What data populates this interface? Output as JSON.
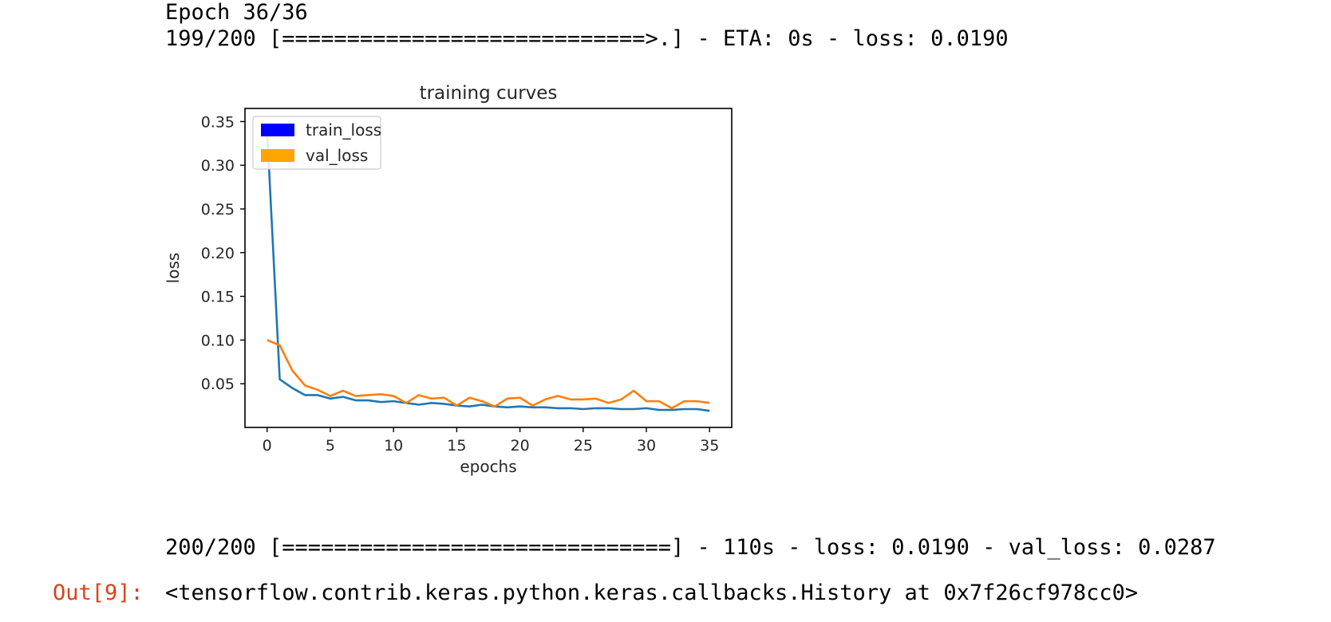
{
  "console": {
    "epoch_line": "Epoch 36/36",
    "progress_line": "199/200 [============================>.] - ETA: 0s - loss: 0.0190",
    "final_line": "200/200 [==============================] - 110s - loss: 0.0190 - val_loss: 0.0287",
    "out_prompt": "Out[9]:",
    "out_value": "<tensorflow.contrib.keras.python.keras.callbacks.History at 0x7f26cf978cc0>"
  },
  "chart_data": {
    "type": "line",
    "title": "training curves",
    "xlabel": "epochs",
    "ylabel": "loss",
    "xlim": [
      -1.75,
      36.75
    ],
    "ylim": [
      0.0,
      0.365
    ],
    "xticks": [
      0,
      5,
      10,
      15,
      20,
      25,
      30,
      35
    ],
    "yticks": [
      0.05,
      0.1,
      0.15,
      0.2,
      0.25,
      0.3,
      0.35
    ],
    "ytick_labels": [
      "0.05",
      "0.10",
      "0.15",
      "0.20",
      "0.25",
      "0.30",
      "0.35"
    ],
    "grid": false,
    "legend_position": "upper-left",
    "x": [
      0,
      1,
      2,
      3,
      4,
      5,
      6,
      7,
      8,
      9,
      10,
      11,
      12,
      13,
      14,
      15,
      16,
      17,
      18,
      19,
      20,
      21,
      22,
      23,
      24,
      25,
      26,
      27,
      28,
      29,
      30,
      31,
      32,
      33,
      34,
      35
    ],
    "series": [
      {
        "name": "train_loss",
        "color": "#1f77b4",
        "legend_color": "#0000ff",
        "values": [
          0.34,
          0.055,
          0.045,
          0.037,
          0.037,
          0.033,
          0.035,
          0.031,
          0.031,
          0.029,
          0.03,
          0.028,
          0.026,
          0.028,
          0.027,
          0.025,
          0.024,
          0.026,
          0.024,
          0.023,
          0.024,
          0.023,
          0.023,
          0.022,
          0.022,
          0.021,
          0.022,
          0.022,
          0.021,
          0.021,
          0.022,
          0.02,
          0.02,
          0.021,
          0.021,
          0.019
        ]
      },
      {
        "name": "val_loss",
        "color": "#ff7f0e",
        "legend_color": "#ffa500",
        "values": [
          0.1,
          0.094,
          0.065,
          0.048,
          0.043,
          0.036,
          0.042,
          0.036,
          0.037,
          0.038,
          0.036,
          0.028,
          0.037,
          0.033,
          0.034,
          0.025,
          0.034,
          0.03,
          0.024,
          0.033,
          0.034,
          0.025,
          0.032,
          0.036,
          0.032,
          0.032,
          0.033,
          0.028,
          0.032,
          0.042,
          0.03,
          0.03,
          0.022,
          0.03,
          0.03,
          0.028
        ]
      }
    ]
  }
}
